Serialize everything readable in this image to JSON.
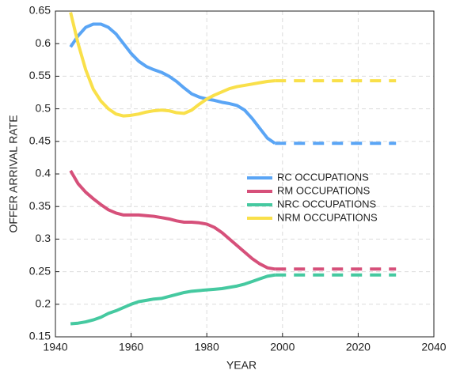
{
  "chart_data": {
    "type": "line",
    "xlabel": "YEAR",
    "ylabel": "OFFER ARRIVAL RATE",
    "x": [
      1944,
      1946,
      1948,
      1950,
      1952,
      1954,
      1956,
      1958,
      1960,
      1962,
      1964,
      1966,
      1968,
      1970,
      1972,
      1974,
      1976,
      1978,
      1980,
      1982,
      1984,
      1986,
      1988,
      1990,
      1992,
      1994,
      1996,
      1998,
      2030
    ],
    "dashed_from": 1998,
    "series": [
      {
        "name": "RC OCCUPATIONS",
        "color": "#5aa5f5",
        "values": [
          0.595,
          0.612,
          0.625,
          0.63,
          0.63,
          0.625,
          0.615,
          0.6,
          0.585,
          0.573,
          0.565,
          0.56,
          0.556,
          0.55,
          0.542,
          0.532,
          0.523,
          0.518,
          0.515,
          0.513,
          0.51,
          0.508,
          0.505,
          0.498,
          0.485,
          0.47,
          0.455,
          0.447,
          0.447
        ]
      },
      {
        "name": "RM OCCUPATIONS",
        "color": "#d6507a",
        "values": [
          0.405,
          0.385,
          0.372,
          0.362,
          0.353,
          0.345,
          0.34,
          0.337,
          0.337,
          0.337,
          0.336,
          0.335,
          0.333,
          0.331,
          0.328,
          0.326,
          0.326,
          0.325,
          0.323,
          0.318,
          0.31,
          0.3,
          0.29,
          0.28,
          0.27,
          0.262,
          0.256,
          0.254,
          0.254
        ]
      },
      {
        "name": "NRC OCCUPATIONS",
        "color": "#45c9a0",
        "values": [
          0.17,
          0.171,
          0.173,
          0.176,
          0.18,
          0.186,
          0.19,
          0.195,
          0.2,
          0.204,
          0.206,
          0.208,
          0.209,
          0.212,
          0.215,
          0.218,
          0.22,
          0.221,
          0.222,
          0.223,
          0.224,
          0.226,
          0.228,
          0.231,
          0.235,
          0.239,
          0.243,
          0.245,
          0.245
        ]
      },
      {
        "name": "NRM OCCUPATIONS",
        "color": "#f9e04a",
        "values": [
          0.648,
          0.6,
          0.56,
          0.53,
          0.512,
          0.5,
          0.492,
          0.489,
          0.49,
          0.492,
          0.495,
          0.497,
          0.498,
          0.497,
          0.494,
          0.493,
          0.498,
          0.507,
          0.515,
          0.521,
          0.526,
          0.531,
          0.534,
          0.536,
          0.538,
          0.54,
          0.542,
          0.543,
          0.543
        ]
      }
    ],
    "xlim": [
      1940,
      2040
    ],
    "xticks": [
      1940,
      1960,
      1980,
      2000,
      2020,
      2040
    ],
    "ylim": [
      0.15,
      0.65
    ],
    "yticks": [
      0.15,
      0.2,
      0.25,
      0.3,
      0.35,
      0.4,
      0.45,
      0.5,
      0.55,
      0.6,
      0.65
    ],
    "grid": true,
    "legend": "center-right"
  }
}
